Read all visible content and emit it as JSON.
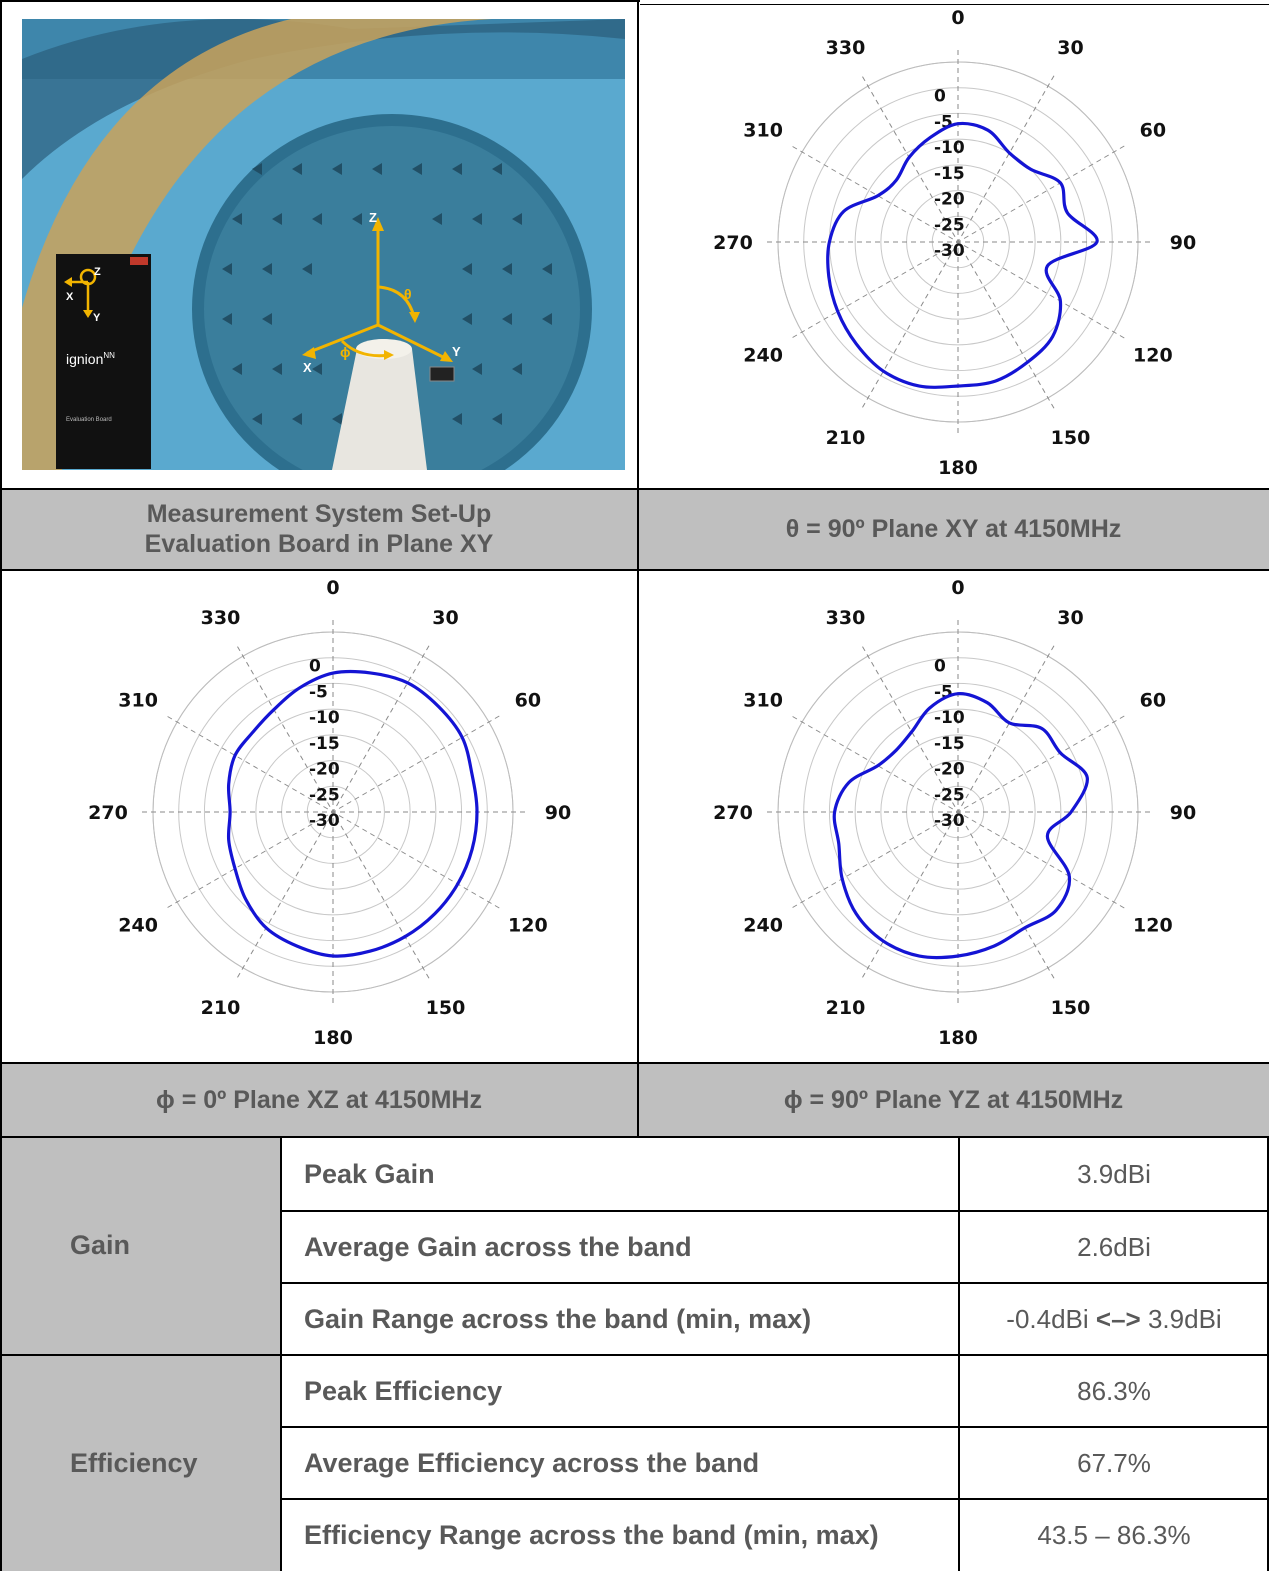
{
  "captions": {
    "setup_line1": "Measurement System Set-Up",
    "setup_line2": "Evaluation Board in Plane XY",
    "xy": "θ = 90º Plane XY at 4150MHz",
    "xz": "ϕ = 0º Plane XZ at 4150MHz",
    "yz": "ϕ = 90º Plane YZ at 4150MHz"
  },
  "photo": {
    "board_brand": "ignion",
    "board_brand_sup": "NN",
    "board_subtitle": "Evaluation Board",
    "axis_z": "Z",
    "axis_x": "X",
    "axis_y": "Y",
    "theta": "θ",
    "phi": "ϕ",
    "colors": {
      "chamber": "#5aa9cf",
      "absorber": "#2d6f8e",
      "axis": "#f2b400",
      "mast": "#e8e6e0",
      "board": "#111111"
    }
  },
  "chart_data": [
    {
      "type": "polar",
      "plane": "XY",
      "angle_labels": [
        "0",
        "30",
        "60",
        "90",
        "120",
        "150",
        "180",
        "210",
        "240",
        "270",
        "310",
        "330"
      ],
      "ring_labels": [
        "0",
        "-5",
        "-10",
        "-15",
        "-20",
        "-25",
        "-30"
      ],
      "r_range_dB": [
        -30,
        5
      ],
      "angle_deg": [
        0,
        15,
        30,
        45,
        60,
        75,
        90,
        105,
        120,
        135,
        150,
        165,
        180,
        195,
        210,
        225,
        240,
        255,
        270,
        285,
        300,
        315,
        330,
        345
      ],
      "gain_dB": [
        -7,
        -7.5,
        -10,
        -10,
        -7,
        -8,
        -3,
        -12,
        -7,
        -4,
        -3,
        -2,
        -2,
        -1,
        -1,
        -2,
        -3,
        -4,
        -5,
        -7,
        -12,
        -13,
        -11,
        -9
      ],
      "line_color": "#1414d4"
    },
    {
      "type": "polar",
      "plane": "XZ",
      "angle_labels": [
        "0",
        "30",
        "60",
        "90",
        "120",
        "150",
        "180",
        "210",
        "240",
        "270",
        "310",
        "330"
      ],
      "ring_labels": [
        "0",
        "-5",
        "-10",
        "-15",
        "-20",
        "-25",
        "-30"
      ],
      "r_range_dB": [
        -30,
        5
      ],
      "angle_deg": [
        0,
        15,
        30,
        45,
        60,
        75,
        90,
        105,
        120,
        135,
        150,
        165,
        180,
        195,
        210,
        225,
        240,
        255,
        270,
        285,
        300,
        315,
        330,
        345
      ],
      "gain_dB": [
        -3,
        -2,
        -1,
        -1,
        -1,
        -2,
        -2,
        -2,
        -2,
        -2,
        -2,
        -2,
        -2,
        -3,
        -4,
        -6,
        -8,
        -9,
        -10,
        -9,
        -8,
        -8,
        -7,
        -5
      ],
      "line_color": "#1414d4"
    },
    {
      "type": "polar",
      "plane": "YZ",
      "angle_labels": [
        "0",
        "30",
        "60",
        "90",
        "120",
        "150",
        "180",
        "210",
        "240",
        "270",
        "310",
        "330"
      ],
      "ring_labels": [
        "0",
        "-5",
        "-10",
        "-15",
        "-20",
        "-25",
        "-30"
      ],
      "r_range_dB": [
        -30,
        5
      ],
      "angle_deg": [
        0,
        15,
        30,
        45,
        60,
        75,
        90,
        105,
        120,
        135,
        150,
        165,
        180,
        195,
        210,
        225,
        240,
        255,
        270,
        285,
        300,
        315,
        330,
        345
      ],
      "gain_dB": [
        -7,
        -8,
        -10,
        -7,
        -7,
        -4,
        -8,
        -12,
        -5,
        -3,
        -4,
        -3,
        -2,
        -1,
        -1,
        -2,
        -4,
        -6,
        -6,
        -8,
        -12,
        -13,
        -12,
        -9
      ],
      "line_color": "#1414d4"
    }
  ],
  "table": {
    "gain_category": "Gain",
    "efficiency_category": "Efficiency",
    "rows": [
      {
        "label": "Peak Gain",
        "value": "3.9dBi"
      },
      {
        "label": "Average Gain across the band",
        "value": "2.6dBi"
      },
      {
        "label": "Gain Range across the band (min, max)",
        "value_min": "-0.4dBi",
        "value_sep": "<–>",
        "value_max": "3.9dBi"
      },
      {
        "label": "Peak Efficiency",
        "value": "86.3%"
      },
      {
        "label": "Average Efficiency across the band",
        "value": "67.7%"
      },
      {
        "label": "Efficiency Range across the band (min, max)",
        "value": "43.5 – 86.3%"
      }
    ]
  }
}
